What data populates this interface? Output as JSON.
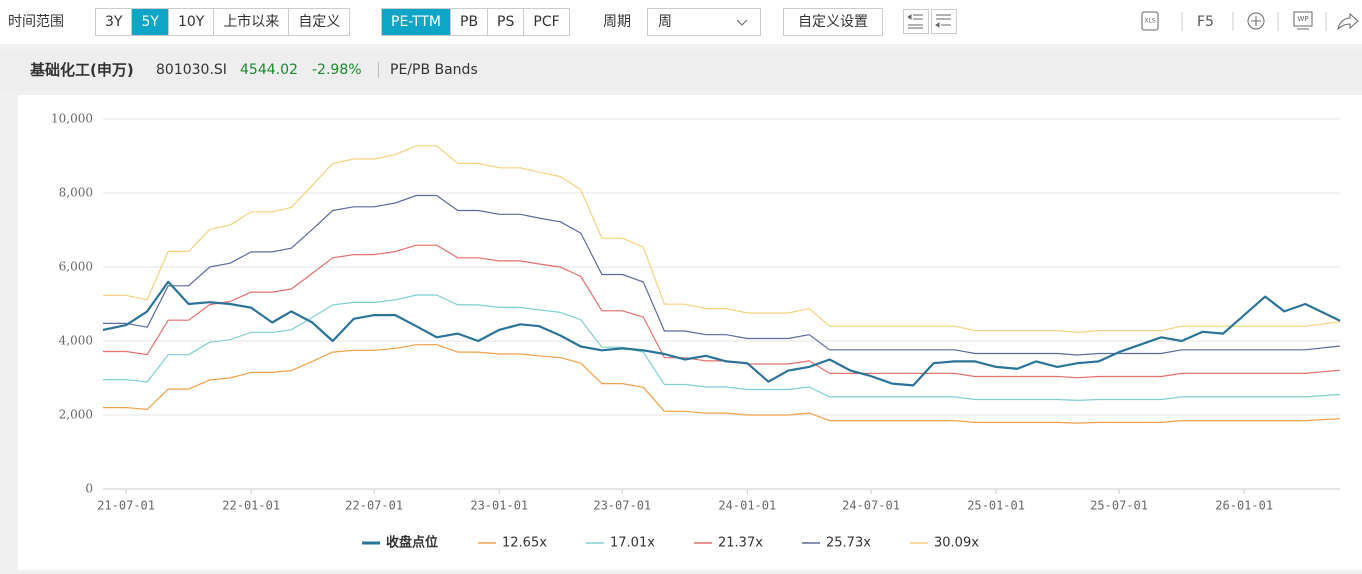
{
  "toolbar": {
    "range_label": "时间范围",
    "ranges": [
      "3Y",
      "5Y",
      "10Y",
      "上市以来",
      "自定义"
    ],
    "active_range": 1,
    "metrics": [
      "PE-TTM",
      "PB",
      "PS",
      "PCF"
    ],
    "active_metric": 0,
    "period_label": "周期",
    "period": "周",
    "settings": "自定义设置",
    "refresh": "F5"
  },
  "header": {
    "name": "基础化工(申万)",
    "code": "801030.SI",
    "price": "4544.02",
    "change": "-2.98%",
    "view": "PE/PB Bands"
  },
  "chart_data": {
    "type": "line",
    "x": [
      "21-05-28",
      "21-07-01",
      "21-08-01",
      "21-09-01",
      "21-10-01",
      "21-11-01",
      "21-12-01",
      "22-01-01",
      "22-02-01",
      "22-03-01",
      "22-04-01",
      "22-05-01",
      "22-06-01",
      "22-07-01",
      "22-08-01",
      "22-09-01",
      "22-10-01",
      "22-11-01",
      "22-12-01",
      "23-01-01",
      "23-02-01",
      "23-03-01",
      "23-04-01",
      "23-05-01",
      "23-06-01",
      "23-07-01",
      "23-08-01",
      "23-09-01",
      "23-10-01",
      "23-11-01",
      "23-12-01",
      "24-01-01",
      "24-02-01",
      "24-03-01",
      "24-04-01",
      "24-05-01",
      "24-06-01",
      "24-07-01",
      "24-08-01",
      "24-09-01",
      "24-10-01",
      "24-11-01",
      "24-12-01",
      "25-01-01",
      "25-02-01",
      "25-03-01",
      "25-04-01",
      "25-05-01",
      "25-06-01",
      "25-07-01",
      "25-08-01",
      "25-09-01",
      "25-10-01",
      "25-11-01",
      "25-12-01",
      "26-01-01",
      "26-02-01",
      "26-03-01",
      "26-04-01",
      "26-05-22"
    ],
    "xlim": [
      "21-05-28",
      "26-05-22"
    ],
    "xticks": [
      "21-07-01",
      "22-01-01",
      "22-07-01",
      "23-01-01",
      "23-07-01",
      "24-01-01",
      "24-07-01",
      "25-01-01",
      "25-07-01",
      "26-01-01"
    ],
    "ylim": [
      0,
      10000
    ],
    "yticks": [
      0,
      {
        "value": 2000,
        "label": "2,000"
      },
      {
        "value": 4000,
        "label": "4,000"
      },
      {
        "value": 6000,
        "label": "6,000"
      },
      {
        "value": 8000,
        "label": "8,000"
      },
      {
        "value": 10000,
        "label": "10,000"
      }
    ],
    "grid": true,
    "legend": "bottom",
    "series": [
      {
        "name": "收盘点位",
        "color": "#2a7399",
        "values": [
          4300,
          4430,
          4800,
          5600,
          5000,
          5050,
          5000,
          4900,
          4500,
          4800,
          4500,
          4000,
          4600,
          4700,
          4700,
          4400,
          4100,
          4200,
          4000,
          4300,
          4450,
          4400,
          4150,
          3850,
          3750,
          3800,
          3750,
          3650,
          3500,
          3600,
          3450,
          3400,
          2900,
          3200,
          3300,
          3500,
          3200,
          3050,
          2850,
          2800,
          3400,
          3450,
          3450,
          3300,
          3250,
          3450,
          3300,
          3400,
          3450,
          3700,
          3900,
          4100,
          4000,
          4250,
          4200,
          4700,
          5200,
          4800,
          5000,
          4550
        ]
      },
      {
        "name": "12.65x",
        "color": "#f0a14a",
        "values": [
          2200,
          2200,
          2150,
          2700,
          2700,
          2950,
          3000,
          3150,
          3150,
          3200,
          3450,
          3700,
          3750,
          3750,
          3800,
          3900,
          3900,
          3700,
          3700,
          3650,
          3650,
          3600,
          3550,
          3400,
          2850,
          2850,
          2750,
          2100,
          2100,
          2050,
          2050,
          2000,
          2000,
          2000,
          2050,
          1850,
          1850,
          1850,
          1850,
          1850,
          1850,
          1850,
          1800,
          1800,
          1800,
          1800,
          1800,
          1780,
          1800,
          1800,
          1800,
          1800,
          1850,
          1850,
          1850,
          1850,
          1850,
          1850,
          1850,
          1900
        ]
      },
      {
        "name": "17.01x",
        "color": "#80cfd1",
        "values": [
          2958,
          2958,
          2891,
          3631,
          3631,
          3967,
          4034,
          4236,
          4236,
          4303,
          4639,
          4975,
          5043,
          5043,
          5110,
          5244,
          5244,
          4975,
          4975,
          4908,
          4908,
          4841,
          4774,
          4572,
          3832,
          3832,
          3698,
          2824,
          2824,
          2757,
          2757,
          2689,
          2689,
          2689,
          2757,
          2488,
          2488,
          2488,
          2488,
          2488,
          2488,
          2488,
          2420,
          2420,
          2420,
          2420,
          2420,
          2394,
          2420,
          2420,
          2420,
          2420,
          2488,
          2488,
          2488,
          2488,
          2488,
          2488,
          2488,
          2555
        ]
      },
      {
        "name": "21.37x",
        "color": "#e46f6f",
        "values": [
          3716,
          3716,
          3632,
          4561,
          4561,
          4983,
          5068,
          5321,
          5321,
          5406,
          5828,
          6250,
          6335,
          6335,
          6419,
          6588,
          6588,
          6250,
          6250,
          6166,
          6166,
          6081,
          5997,
          5744,
          4815,
          4815,
          4646,
          3548,
          3548,
          3463,
          3463,
          3379,
          3379,
          3379,
          3463,
          3125,
          3125,
          3125,
          3125,
          3125,
          3125,
          3125,
          3041,
          3041,
          3041,
          3041,
          3041,
          3007,
          3041,
          3041,
          3041,
          3041,
          3125,
          3125,
          3125,
          3125,
          3125,
          3125,
          3125,
          3210
        ]
      },
      {
        "name": "25.73x",
        "color": "#5d6a9c",
        "values": [
          4475,
          4475,
          4373,
          5492,
          5492,
          6000,
          6102,
          6407,
          6407,
          6509,
          7017,
          7526,
          7628,
          7628,
          7729,
          7933,
          7933,
          7526,
          7526,
          7424,
          7424,
          7322,
          7221,
          6916,
          5797,
          5797,
          5594,
          4271,
          4271,
          4170,
          4170,
          4068,
          4068,
          4068,
          4170,
          3763,
          3763,
          3763,
          3763,
          3763,
          3763,
          3763,
          3661,
          3661,
          3661,
          3661,
          3661,
          3621,
          3661,
          3661,
          3661,
          3661,
          3763,
          3763,
          3763,
          3763,
          3763,
          3763,
          3763,
          3865
        ]
      },
      {
        "name": "30.09x",
        "color": "#f3d27c",
        "values": [
          5233,
          5233,
          5114,
          6422,
          6422,
          7017,
          7136,
          7493,
          7493,
          7612,
          8207,
          8801,
          8920,
          8920,
          9039,
          9277,
          9277,
          8801,
          8801,
          8682,
          8682,
          8563,
          8444,
          8088,
          6779,
          6779,
          6541,
          4995,
          4995,
          4876,
          4876,
          4757,
          4757,
          4757,
          4876,
          4401,
          4401,
          4401,
          4401,
          4401,
          4401,
          4401,
          4282,
          4282,
          4282,
          4282,
          4282,
          4234,
          4282,
          4282,
          4282,
          4282,
          4401,
          4401,
          4401,
          4401,
          4401,
          4401,
          4401,
          4520
        ]
      }
    ]
  }
}
